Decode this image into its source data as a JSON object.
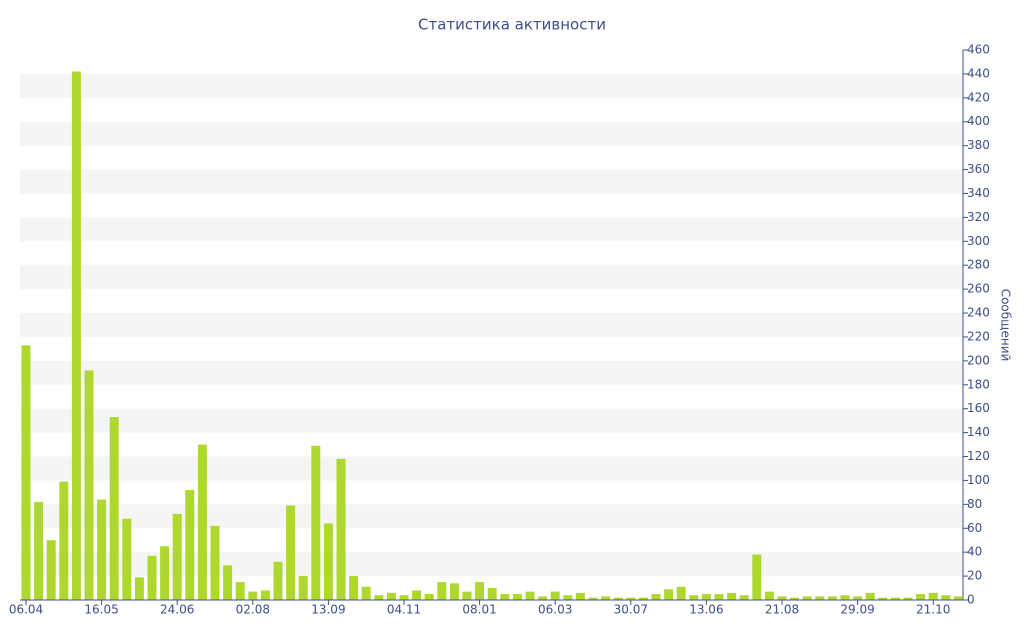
{
  "chart_data": {
    "type": "bar",
    "title": "Статистика активности",
    "y_label": "Сообщений",
    "y_axis_side": "right",
    "categories": [
      "06.04",
      null,
      null,
      null,
      null,
      null,
      "16.05",
      null,
      null,
      null,
      null,
      null,
      "24.06",
      null,
      null,
      null,
      null,
      null,
      "02.08",
      null,
      null,
      null,
      null,
      null,
      "13.09",
      null,
      null,
      null,
      null,
      null,
      "04.11",
      null,
      null,
      null,
      null,
      null,
      "08.01",
      null,
      null,
      null,
      null,
      null,
      "06.03",
      null,
      null,
      null,
      null,
      null,
      "30.07",
      null,
      null,
      null,
      null,
      null,
      "13.06",
      null,
      null,
      null,
      null,
      null,
      "21.08",
      null,
      null,
      null,
      null,
      null,
      "29.09",
      null,
      null,
      null,
      null,
      null,
      "21.10",
      null,
      null
    ],
    "values": [
      213,
      82,
      50,
      99,
      442,
      192,
      84,
      153,
      68,
      19,
      37,
      45,
      72,
      92,
      130,
      62,
      29,
      15,
      7,
      8,
      32,
      79,
      20,
      129,
      64,
      118,
      20,
      11,
      4,
      6,
      4,
      8,
      5,
      15,
      14,
      7,
      15,
      10,
      5,
      5,
      7,
      3,
      7,
      4,
      6,
      2,
      3,
      2,
      2,
      2,
      5,
      9,
      11,
      4,
      5,
      5,
      6,
      4,
      38,
      7,
      3,
      2,
      3,
      3,
      3,
      4,
      3,
      6,
      2,
      2,
      2,
      5,
      6,
      4,
      3
    ],
    "color": "#afd82e",
    "ylim": [
      0,
      460
    ],
    "yticks": [
      0,
      20,
      40,
      60,
      80,
      100,
      120,
      140,
      160,
      180,
      200,
      220,
      240,
      260,
      280,
      300,
      320,
      340,
      360,
      380,
      400,
      420,
      440,
      460
    ],
    "alternate_bands": true
  }
}
